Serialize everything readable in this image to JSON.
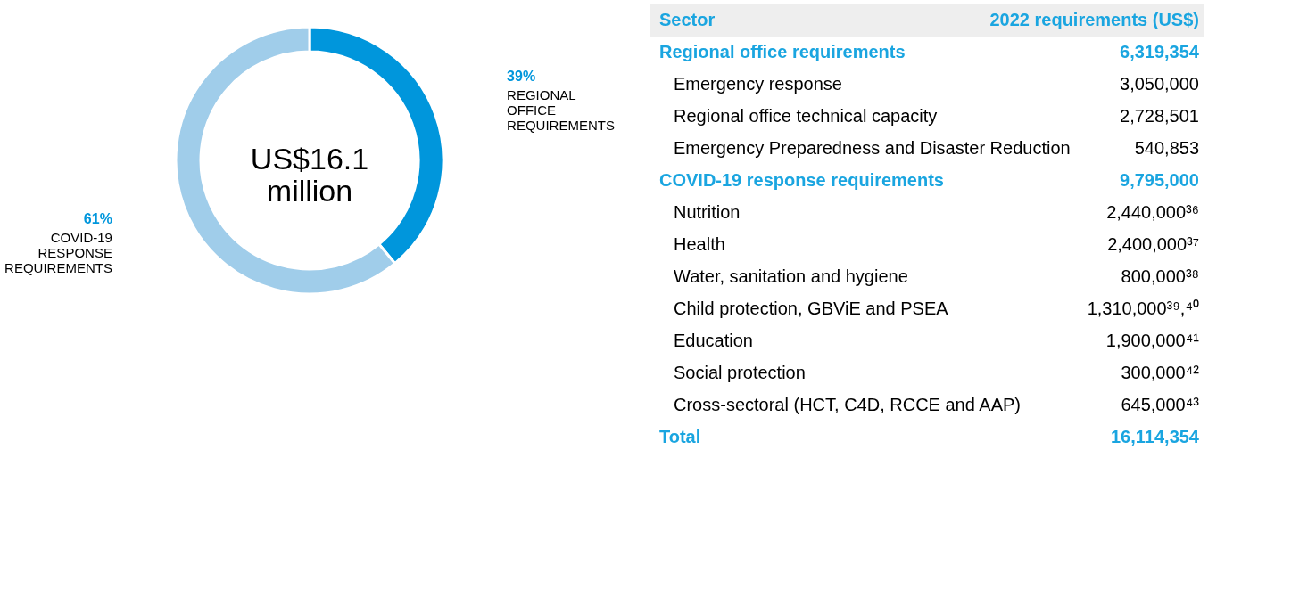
{
  "chart_data": [
    {
      "type": "donut",
      "categories": [
        "REGIONAL OFFICE REQUIREMENTS",
        "COVID-19 RESPONSE REQUIREMENTS"
      ],
      "values": [
        39,
        61
      ],
      "value_labels": [
        "39%",
        "61%"
      ],
      "colors": [
        "#0096dc",
        "#a0cdea"
      ],
      "annotations": [
        "US$16.1 million"
      ]
    },
    {
      "type": "other",
      "annotations": [
        "Sector",
        "2022 requirements (US$)"
      ],
      "categories": [
        "Regional office requirements",
        "Emergency response",
        "Regional office technical capacity",
        "Emergency Preparedness and Disaster Reduction",
        "COVID-19 response requirements",
        "Nutrition",
        "Health",
        "Water, sanitation and hygiene",
        "Child protection, GBViE and PSEA",
        "Education",
        "Social protection",
        "Cross-sectoral (HCT, C4D, RCCE and AAP)",
        "Total"
      ],
      "values": [
        6319354,
        3050000,
        2728501,
        540853,
        9795000,
        2440000,
        2400000,
        800000,
        1310000,
        1900000,
        300000,
        645000,
        16114354
      ],
      "value_labels": [
        "6,319,354",
        "3,050,000",
        "2,728,501",
        "540,853",
        "9,795,000",
        "2,440,000³⁶",
        "2,400,000³⁷",
        "800,000³⁸",
        "1,310,000³⁹,⁴⁰",
        "1,900,000⁴¹",
        "300,000⁴²",
        "645,000⁴³",
        "16,114,354"
      ],
      "colors": [
        "#1aa5e0",
        "#000000",
        "#000000",
        "#000000",
        "#1aa5e0",
        "#000000",
        "#000000",
        "#000000",
        "#000000",
        "#000000",
        "#000000",
        "#000000",
        "#1aa5e0"
      ]
    }
  ]
}
